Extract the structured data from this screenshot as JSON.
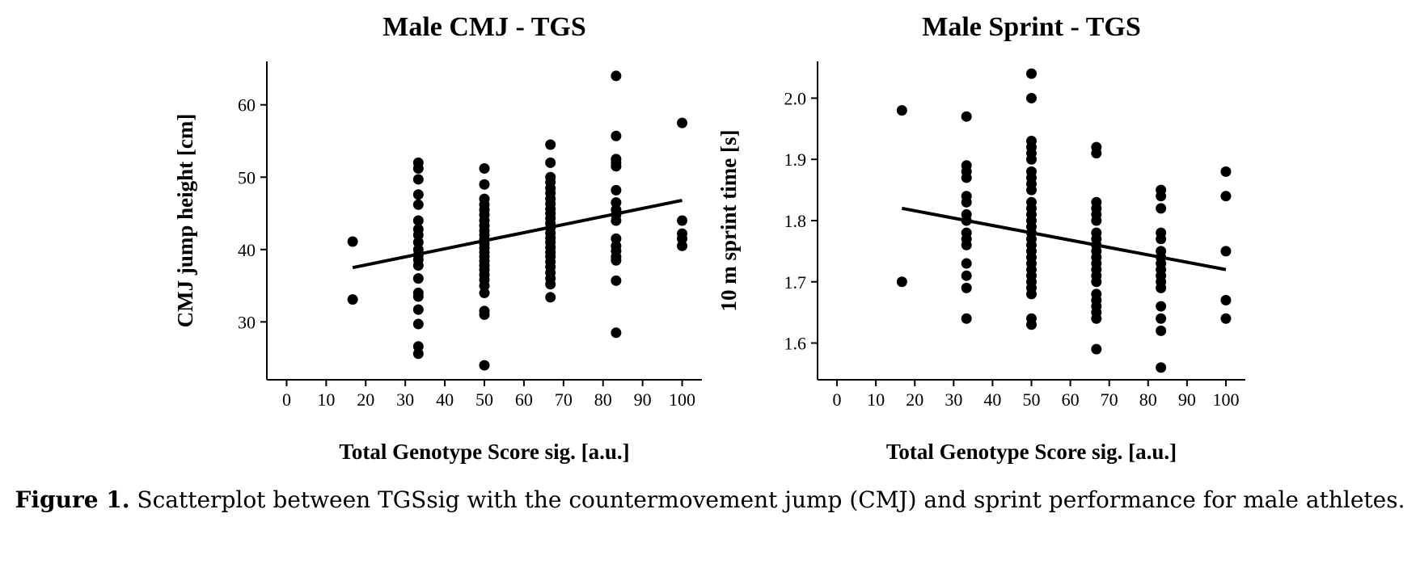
{
  "chart_data": [
    {
      "type": "scatter",
      "title": "Male CMJ - TGS",
      "xlabel": "Total Genotype Score sig. [a.u.]",
      "ylabel": "CMJ jump height [cm]",
      "color": "#000000",
      "xlim": [
        -5,
        105
      ],
      "ylim": [
        22,
        66
      ],
      "xticks": [
        0,
        10,
        20,
        30,
        40,
        50,
        60,
        70,
        80,
        90,
        100
      ],
      "yticks": [
        30,
        40,
        50,
        60
      ],
      "points": [
        {
          "x": 16.7,
          "values": [
            41.1,
            33.1
          ]
        },
        {
          "x": 33.3,
          "values": [
            52,
            51.2,
            49.7,
            47.6,
            46.2,
            44,
            42.8,
            42,
            41,
            40,
            39.2,
            38.6,
            37.8,
            36,
            34,
            33.5,
            31.7,
            29.7,
            26.6,
            25.6
          ]
        },
        {
          "x": 50,
          "values": [
            51.2,
            49,
            47,
            46.2,
            45.5,
            44.8,
            44,
            43.3,
            42.6,
            42,
            41.4,
            40.8,
            40.2,
            39.6,
            39,
            38.4,
            37.8,
            37.2,
            36.5,
            35.8,
            35,
            34,
            31.5,
            31,
            24
          ]
        },
        {
          "x": 66.7,
          "values": [
            54.5,
            52,
            50,
            49.3,
            48.5,
            47.8,
            47,
            46.3,
            45.6,
            45,
            44.3,
            43.6,
            43,
            42.3,
            41.6,
            41,
            40.3,
            39.6,
            39,
            38.3,
            37.6,
            36.8,
            36,
            35.2,
            33.4
          ]
        },
        {
          "x": 83.3,
          "values": [
            64,
            55.7,
            52.5,
            52,
            51.5,
            48.2,
            46.5,
            45.5,
            44.8,
            44,
            41.5,
            40.5,
            39.8,
            39,
            38.5,
            35.7,
            28.5
          ]
        },
        {
          "x": 100,
          "values": [
            57.5,
            44,
            42.2,
            41.5,
            40.5
          ]
        }
      ],
      "fit": {
        "x": [
          16.7,
          100
        ],
        "values": [
          37.5,
          46.8
        ]
      }
    },
    {
      "type": "scatter",
      "title": "Male Sprint - TGS",
      "xlabel": "Total Genotype Score sig. [a.u.]",
      "ylabel": "10 m sprint time [s]",
      "color": "#000000",
      "xlim": [
        -5,
        105
      ],
      "ylim": [
        1.54,
        2.06
      ],
      "xticks": [
        0,
        10,
        20,
        30,
        40,
        50,
        60,
        70,
        80,
        90,
        100
      ],
      "yticks": [
        1.6,
        1.7,
        1.8,
        1.9,
        {
          "value": 2,
          "label": "2.0"
        }
      ],
      "points": [
        {
          "x": 16.7,
          "values": [
            1.98,
            1.7
          ]
        },
        {
          "x": 33.3,
          "values": [
            1.97,
            1.89,
            1.88,
            1.87,
            1.84,
            1.83,
            1.81,
            1.8,
            1.78,
            1.77,
            1.76,
            1.73,
            1.71,
            1.69,
            1.64
          ]
        },
        {
          "x": 50,
          "values": [
            2.04,
            2,
            1.93,
            1.92,
            1.91,
            1.9,
            1.88,
            1.87,
            1.86,
            1.85,
            1.83,
            1.82,
            1.81,
            1.8,
            1.79,
            1.78,
            1.77,
            1.76,
            1.75,
            1.74,
            1.73,
            1.72,
            1.71,
            1.7,
            1.69,
            1.68,
            1.64,
            1.63
          ]
        },
        {
          "x": 66.7,
          "values": [
            1.92,
            1.91,
            1.83,
            1.82,
            1.81,
            1.8,
            1.78,
            1.77,
            1.76,
            1.75,
            1.74,
            1.73,
            1.72,
            1.71,
            1.7,
            1.68,
            1.67,
            1.66,
            1.65,
            1.64,
            1.59
          ]
        },
        {
          "x": 83.3,
          "values": [
            1.85,
            1.84,
            1.82,
            1.78,
            1.77,
            1.75,
            1.74,
            1.73,
            1.72,
            1.71,
            1.7,
            1.69,
            1.66,
            1.64,
            1.62,
            1.56
          ]
        },
        {
          "x": 100,
          "values": [
            1.88,
            1.84,
            1.75,
            1.67,
            1.64
          ]
        }
      ],
      "fit": {
        "x": [
          16.7,
          100
        ],
        "values": [
          1.82,
          1.72
        ]
      }
    }
  ],
  "caption": {
    "label": "Figure 1.",
    "text": "Scatterplot between TGSsig with the countermovement jump (CMJ) and sprint performance for male athletes."
  }
}
